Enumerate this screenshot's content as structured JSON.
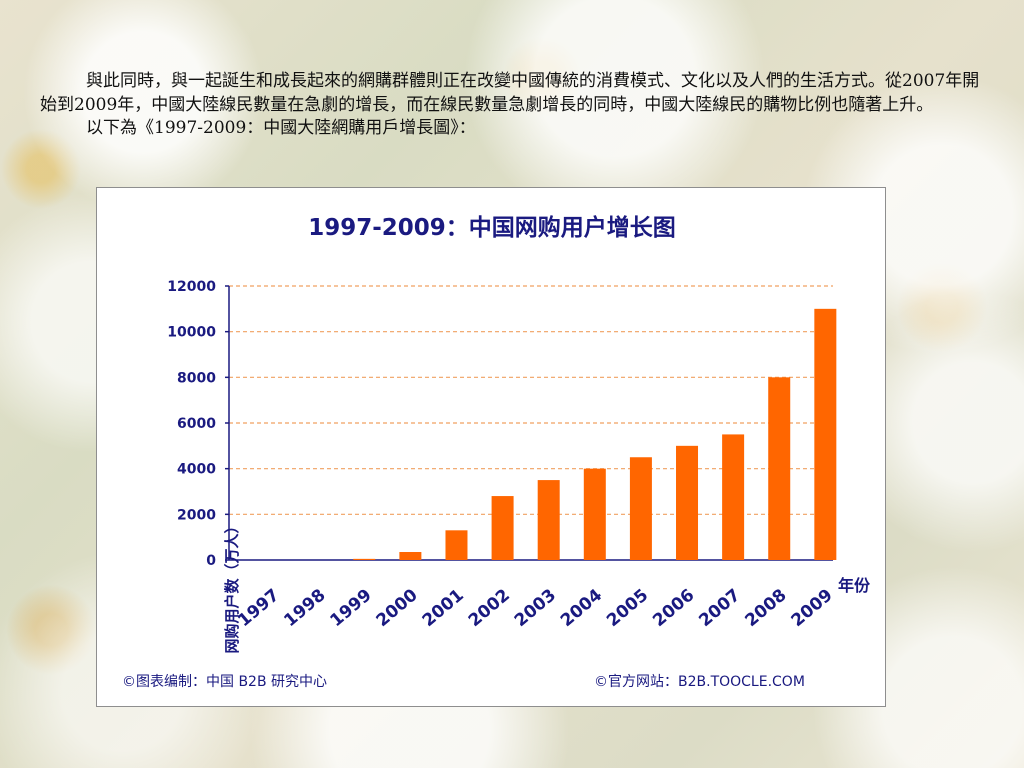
{
  "intro": {
    "para1": "與此同時，與一起誕生和成長起來的網購群體則正在改變中國傳統的消費模式、文化以及人們的生活方式。從2007年開始到2009年，中國大陸線民數量在急劇的增長，而在線民數量急劇增長的同時，中國大陸線民的購物比例也隨著上升。",
    "para2": "以下為《1997-2009：中國大陸網購用戶增長圖》："
  },
  "chart_data": {
    "type": "bar",
    "title": "1997-2009：中国网购用户增长图",
    "xlabel": "年份",
    "ylabel": "网购用户数（万人）",
    "categories": [
      "1997",
      "1998",
      "1999",
      "2000",
      "2001",
      "2002",
      "2003",
      "2004",
      "2005",
      "2006",
      "2007",
      "2008",
      "2009"
    ],
    "values": [
      0,
      0,
      50,
      350,
      1300,
      2800,
      3500,
      4000,
      4500,
      5000,
      5500,
      8000,
      11000
    ],
    "ylim": [
      0,
      12000
    ],
    "yticks": [
      "0",
      "2000",
      "4000",
      "6000",
      "8000",
      "10000",
      "12000"
    ],
    "grid": true,
    "bar_color": "#ff6600",
    "grid_color": "#f0a060",
    "axis_color": "#1a1a80"
  },
  "footer": {
    "left": "©图表编制：中国 B2B 研究中心",
    "right": "©官方网站：B2B.TOOCLE.COM"
  }
}
